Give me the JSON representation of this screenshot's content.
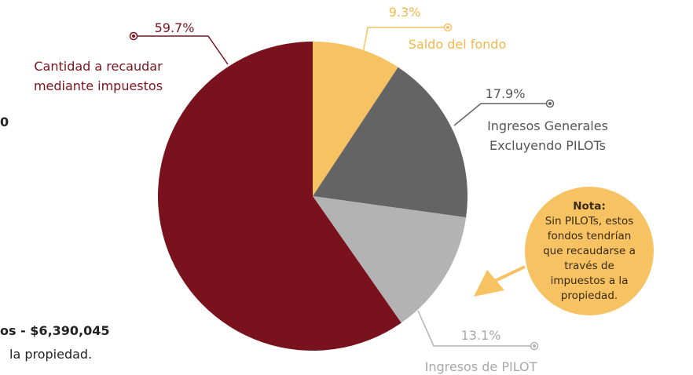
{
  "chart_data": {
    "type": "pie",
    "categories": [
      "Saldo del fondo",
      "Ingresos Generales\nExcluyendo PILOTs",
      "Ingresos de PILOT",
      "Cantidad a recaudar\nmediante impuestos"
    ],
    "values": [
      9.3,
      17.9,
      13.1,
      59.7
    ],
    "value_labels": [
      "9.3%",
      "17.9%",
      "13.1%",
      "59.7%"
    ],
    "colors": [
      "#f6c262",
      "#646464",
      "#b3b3b3",
      "#7a121d"
    ]
  },
  "note": {
    "title": "Nota:",
    "text": "Sin PILOTs, estos\nfondos tendrían\nque recaudarse a\ntravés de\nimpuestos a la\npropiedad."
  },
  "left_fragments": [
    "0",
    "os - $6,390,045",
    "la propiedad."
  ]
}
